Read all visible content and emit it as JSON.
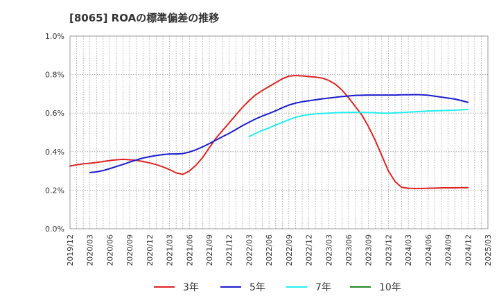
{
  "chart_data": {
    "type": "line",
    "title": "[8065]  ROAの標準偏差の推移",
    "xlabel": "",
    "ylabel": "",
    "x_ticks": [
      "2019/12",
      "2020/03",
      "2020/06",
      "2020/09",
      "2020/12",
      "2021/03",
      "2021/06",
      "2021/09",
      "2021/12",
      "2022/03",
      "2022/06",
      "2022/09",
      "2022/12",
      "2023/03",
      "2023/06",
      "2023/09",
      "2023/12",
      "2024/03",
      "2024/06",
      "2024/09",
      "2024/12",
      "2025/03"
    ],
    "y_ticks": [
      "0.0%",
      "0.2%",
      "0.4%",
      "0.6%",
      "0.8%",
      "1.0%"
    ],
    "ylim": [
      0,
      1.0
    ],
    "grid": true,
    "legend_position": "bottom",
    "series": [
      {
        "name": "3年",
        "color": "#dd2222",
        "x": [
          "2019/12",
          "2020/01",
          "2020/02",
          "2020/03",
          "2020/04",
          "2020/05",
          "2020/06",
          "2020/07",
          "2020/08",
          "2020/09",
          "2020/10",
          "2020/11",
          "2020/12",
          "2021/01",
          "2021/02",
          "2021/03",
          "2021/04",
          "2021/05",
          "2021/06",
          "2021/07",
          "2021/08",
          "2021/09",
          "2021/10",
          "2021/11",
          "2021/12",
          "2022/01",
          "2022/02",
          "2022/03",
          "2022/04",
          "2022/05",
          "2022/06",
          "2022/07",
          "2022/08",
          "2022/09",
          "2022/10",
          "2022/11",
          "2022/12",
          "2023/01",
          "2023/02",
          "2023/03",
          "2023/04",
          "2023/05",
          "2023/06",
          "2023/07",
          "2023/08",
          "2023/09",
          "2023/10",
          "2023/11",
          "2023/12",
          "2024/01",
          "2024/02",
          "2024/03",
          "2024/04",
          "2024/05",
          "2024/06",
          "2024/07",
          "2024/08",
          "2024/09",
          "2024/10",
          "2024/11",
          "2024/12"
        ],
        "values": [
          0.325,
          0.332,
          0.337,
          0.34,
          0.344,
          0.349,
          0.354,
          0.358,
          0.36,
          0.358,
          0.355,
          0.349,
          0.342,
          0.333,
          0.321,
          0.307,
          0.29,
          0.282,
          0.3,
          0.33,
          0.37,
          0.42,
          0.47,
          0.51,
          0.55,
          0.59,
          0.63,
          0.665,
          0.695,
          0.718,
          0.738,
          0.758,
          0.778,
          0.792,
          0.795,
          0.793,
          0.79,
          0.787,
          0.782,
          0.77,
          0.75,
          0.72,
          0.68,
          0.635,
          0.59,
          0.53,
          0.46,
          0.38,
          0.3,
          0.245,
          0.215,
          0.21,
          0.209,
          0.209,
          0.21,
          0.211,
          0.212,
          0.212,
          0.212,
          0.213,
          0.213
        ]
      },
      {
        "name": "5年",
        "color": "#1a1acc",
        "x": [
          "2020/03",
          "2020/04",
          "2020/05",
          "2020/06",
          "2020/07",
          "2020/08",
          "2020/09",
          "2020/10",
          "2020/11",
          "2020/12",
          "2021/01",
          "2021/02",
          "2021/03",
          "2021/04",
          "2021/05",
          "2021/06",
          "2021/07",
          "2021/08",
          "2021/09",
          "2021/10",
          "2021/11",
          "2021/12",
          "2022/01",
          "2022/02",
          "2022/03",
          "2022/04",
          "2022/05",
          "2022/06",
          "2022/07",
          "2022/08",
          "2022/09",
          "2022/10",
          "2022/11",
          "2022/12",
          "2023/01",
          "2023/02",
          "2023/03",
          "2023/04",
          "2023/05",
          "2023/06",
          "2023/07",
          "2023/08",
          "2023/09",
          "2023/10",
          "2023/11",
          "2023/12",
          "2024/01",
          "2024/02",
          "2024/03",
          "2024/04",
          "2024/05",
          "2024/06",
          "2024/07",
          "2024/08",
          "2024/09",
          "2024/10",
          "2024/11",
          "2024/12"
        ],
        "values": [
          0.292,
          0.295,
          0.302,
          0.312,
          0.323,
          0.334,
          0.346,
          0.357,
          0.367,
          0.374,
          0.38,
          0.385,
          0.388,
          0.388,
          0.39,
          0.398,
          0.41,
          0.425,
          0.442,
          0.46,
          0.478,
          0.495,
          0.515,
          0.535,
          0.553,
          0.57,
          0.585,
          0.598,
          0.612,
          0.628,
          0.642,
          0.652,
          0.659,
          0.664,
          0.669,
          0.674,
          0.678,
          0.682,
          0.686,
          0.689,
          0.692,
          0.693,
          0.694,
          0.694,
          0.694,
          0.694,
          0.694,
          0.695,
          0.695,
          0.696,
          0.695,
          0.693,
          0.688,
          0.683,
          0.678,
          0.673,
          0.665,
          0.656
        ]
      },
      {
        "name": "7年",
        "color": "#22eeee",
        "x": [
          "2022/03",
          "2022/04",
          "2022/05",
          "2022/06",
          "2022/07",
          "2022/08",
          "2022/09",
          "2022/10",
          "2022/11",
          "2022/12",
          "2023/01",
          "2023/02",
          "2023/03",
          "2023/04",
          "2023/05",
          "2023/06",
          "2023/07",
          "2023/08",
          "2023/09",
          "2023/10",
          "2023/11",
          "2023/12",
          "2024/01",
          "2024/02",
          "2024/03",
          "2024/04",
          "2024/05",
          "2024/06",
          "2024/07",
          "2024/08",
          "2024/09",
          "2024/10",
          "2024/11",
          "2024/12"
        ],
        "values": [
          0.478,
          0.495,
          0.51,
          0.523,
          0.538,
          0.553,
          0.566,
          0.578,
          0.587,
          0.592,
          0.596,
          0.598,
          0.6,
          0.602,
          0.603,
          0.604,
          0.604,
          0.604,
          0.603,
          0.602,
          0.6,
          0.6,
          0.601,
          0.603,
          0.605,
          0.607,
          0.609,
          0.611,
          0.612,
          0.613,
          0.614,
          0.615,
          0.617,
          0.619
        ]
      },
      {
        "name": "10年",
        "color": "#228822",
        "x": [],
        "values": []
      }
    ]
  }
}
